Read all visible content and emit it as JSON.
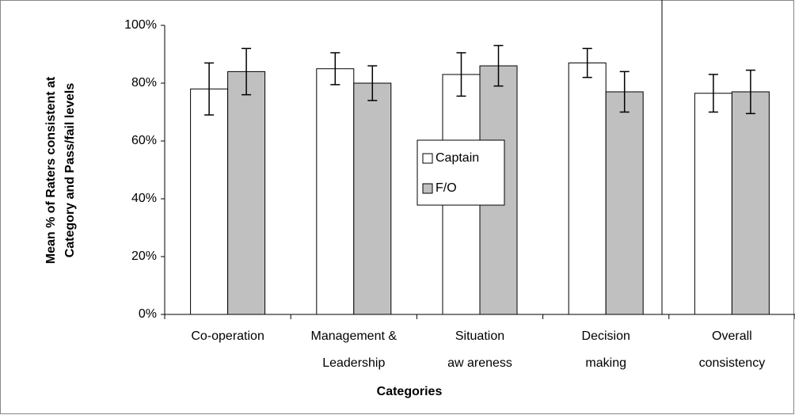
{
  "chart_data": {
    "type": "bar",
    "x_label": "Categories",
    "y_label": [
      "Mean % of Raters consistent at",
      "Category and Pass/fail  levels"
    ],
    "categories": [
      [
        "Co-operation"
      ],
      [
        "Management &",
        "Leadership"
      ],
      [
        "Situation",
        "aw areness"
      ],
      [
        "Decision",
        "making"
      ],
      [
        "Overall",
        "consistency"
      ]
    ],
    "series": [
      {
        "name": "Captain",
        "color": "#ffffff",
        "values": [
          78,
          85,
          83,
          87,
          76.5
        ],
        "errors": [
          9,
          5.5,
          7.5,
          5,
          6.5
        ]
      },
      {
        "name": "F/O",
        "color": "#c0c0c0",
        "values": [
          84,
          80,
          86,
          77,
          77
        ],
        "errors": [
          8,
          6,
          7,
          7,
          7.5
        ]
      }
    ],
    "ylim": [
      0,
      100
    ],
    "yticks": [
      {
        "value": 0,
        "label": "0%"
      },
      {
        "value": 20,
        "label": "20%"
      },
      {
        "value": 40,
        "label": "40%"
      },
      {
        "value": 60,
        "label": "60%"
      },
      {
        "value": 80,
        "label": "80%"
      },
      {
        "value": 100,
        "label": "100%"
      }
    ]
  }
}
